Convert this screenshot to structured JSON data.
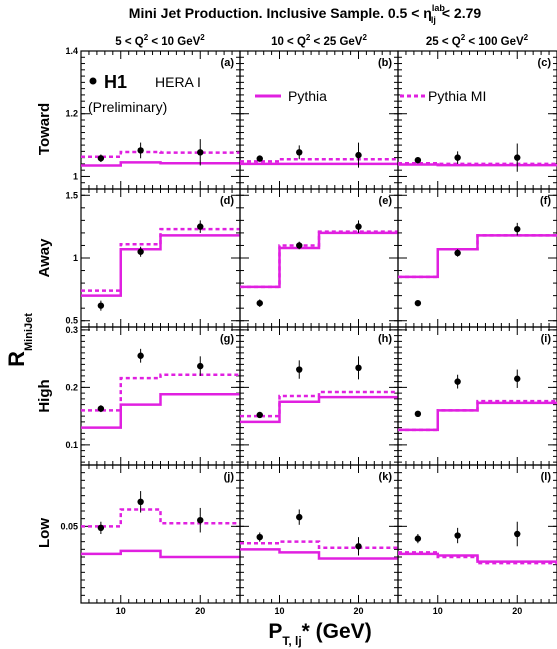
{
  "figure": {
    "title": "Mini Jet Production.  Inclusive Sample.  0.5 < η",
    "title_sup": "lab",
    "title_sub": "lj",
    "title_tail": "< 2.79",
    "y_title": "R",
    "y_title_sub": "MiniJet",
    "x_title": "P",
    "x_title_sub": "T, lj",
    "x_title_tail": "* (GeV)",
    "columns": [
      {
        "pre": "5 < Q",
        "sup": "2",
        "post": " < 10 GeV",
        "sup2": "2"
      },
      {
        "pre": "10 < Q",
        "sup": "2",
        "post": " < 25 GeV",
        "sup2": "2"
      },
      {
        "pre": "25 < Q",
        "sup": "2",
        "post": " < 100 GeV",
        "sup2": "2"
      }
    ],
    "rows": [
      "Toward",
      "Away",
      "High",
      "Low"
    ],
    "panel_tags": [
      "(a)",
      "(b)",
      "(c)",
      "(d)",
      "(e)",
      "(f)",
      "(g)",
      "(h)",
      "(i)",
      "(j)",
      "(k)",
      "(l)"
    ],
    "legend": {
      "data_label": "H1",
      "experiment": "HERA I",
      "status": "(Preliminary)",
      "pythia": "Pythia",
      "pythia_mi": "Pythia MI"
    },
    "colors": {
      "pythia": "#e020e0",
      "data": "#000000"
    }
  },
  "chart_data": {
    "type": "scatter",
    "x_bin_edges": [
      5,
      10,
      15,
      25
    ],
    "x_centers": [
      7.5,
      12.5,
      20
    ],
    "xlim": [
      5,
      25
    ],
    "x_ticks": [
      "10",
      "20"
    ],
    "rows": [
      {
        "name": "Toward",
        "ylim": [
          0.96,
          1.4
        ],
        "y_ticks": [
          "1",
          "1.2",
          "1.4"
        ],
        "y_tick_values": [
          1,
          1.2,
          1.4
        ]
      },
      {
        "name": "Away",
        "ylim": [
          0.45,
          1.55
        ],
        "y_ticks": [
          "0.5",
          "1",
          "1.5"
        ],
        "y_tick_values": [
          0.5,
          1,
          1.5
        ]
      },
      {
        "name": "High",
        "ylim": [
          0.065,
          0.305
        ],
        "y_ticks": [
          "0.1",
          "0.2",
          "0.3"
        ],
        "y_tick_values": [
          0.1,
          0.2,
          0.3
        ]
      },
      {
        "name": "Low",
        "ylim": [
          0,
          0.09
        ],
        "y_ticks": [
          "0.05"
        ],
        "y_tick_values": [
          0.05
        ]
      }
    ],
    "panels": [
      {
        "tag": "(a)",
        "row": 0,
        "col": 0,
        "data": [
          1.058,
          1.083,
          1.077
        ],
        "err": [
          0.012,
          0.025,
          0.042
        ],
        "pythia": [
          1.035,
          1.045,
          1.042
        ],
        "pythia_mi": [
          1.063,
          1.078,
          1.076
        ]
      },
      {
        "tag": "(b)",
        "row": 0,
        "col": 1,
        "data": [
          1.057,
          1.077,
          1.068
        ],
        "err": [
          0.01,
          0.022,
          0.04
        ],
        "pythia": [
          1.04,
          1.04,
          1.04
        ],
        "pythia_mi": [
          1.048,
          1.055,
          1.055
        ]
      },
      {
        "tag": "(c)",
        "row": 0,
        "col": 2,
        "data": [
          1.052,
          1.06,
          1.06
        ],
        "err": [
          0.01,
          0.02,
          0.045
        ],
        "pythia": [
          1.038,
          1.036,
          1.036
        ],
        "pythia_mi": [
          1.042,
          1.04,
          1.04
        ]
      },
      {
        "tag": "(d)",
        "row": 1,
        "col": 0,
        "data": [
          0.62,
          1.05,
          1.25
        ],
        "err": [
          0.04,
          0.04,
          0.05
        ],
        "pythia": [
          0.7,
          1.07,
          1.18
        ],
        "pythia_mi": [
          0.74,
          1.11,
          1.23
        ]
      },
      {
        "tag": "(e)",
        "row": 1,
        "col": 1,
        "data": [
          0.64,
          1.1,
          1.25
        ],
        "err": [
          0.03,
          0.03,
          0.05
        ],
        "pythia": [
          0.77,
          1.08,
          1.2
        ],
        "pythia_mi": [
          0.77,
          1.1,
          1.21
        ]
      },
      {
        "tag": "(f)",
        "row": 1,
        "col": 2,
        "data": [
          0.64,
          1.04,
          1.23
        ],
        "err": [
          0.01,
          0.03,
          0.05
        ],
        "pythia": [
          0.85,
          1.07,
          1.18
        ],
        "pythia_mi": [
          0.85,
          1.07,
          1.18
        ]
      },
      {
        "tag": "(g)",
        "row": 2,
        "col": 0,
        "data": [
          0.163,
          0.255,
          0.237
        ],
        "err": [
          0.006,
          0.012,
          0.017
        ],
        "pythia": [
          0.13,
          0.17,
          0.188
        ],
        "pythia_mi": [
          0.16,
          0.216,
          0.222
        ]
      },
      {
        "tag": "(h)",
        "row": 2,
        "col": 1,
        "data": [
          0.152,
          0.231,
          0.234
        ],
        "err": [
          0.005,
          0.016,
          0.02
        ],
        "pythia": [
          0.14,
          0.175,
          0.183
        ],
        "pythia_mi": [
          0.15,
          0.185,
          0.192
        ]
      },
      {
        "tag": "(i)",
        "row": 2,
        "col": 2,
        "data": [
          0.154,
          0.21,
          0.215
        ],
        "err": [
          0.005,
          0.012,
          0.016
        ],
        "pythia": [
          0.126,
          0.16,
          0.173
        ],
        "pythia_mi": [
          0.126,
          0.16,
          0.176
        ]
      },
      {
        "tag": "(j)",
        "row": 3,
        "col": 0,
        "data": [
          0.049,
          0.066,
          0.054
        ],
        "err": [
          0.004,
          0.007,
          0.008
        ],
        "pythia": [
          0.032,
          0.034,
          0.03
        ],
        "pythia_mi": [
          0.05,
          0.061,
          0.052
        ]
      },
      {
        "tag": "(k)",
        "row": 3,
        "col": 1,
        "data": [
          0.043,
          0.056,
          0.037
        ],
        "err": [
          0.003,
          0.005,
          0.006
        ],
        "pythia": [
          0.035,
          0.033,
          0.029
        ],
        "pythia_mi": [
          0.039,
          0.04,
          0.036
        ]
      },
      {
        "tag": "(l)",
        "row": 3,
        "col": 2,
        "data": [
          0.042,
          0.044,
          0.045
        ],
        "err": [
          0.003,
          0.005,
          0.008
        ],
        "pythia": [
          0.032,
          0.031,
          0.027
        ],
        "pythia_mi": [
          0.033,
          0.03,
          0.026
        ]
      }
    ]
  }
}
